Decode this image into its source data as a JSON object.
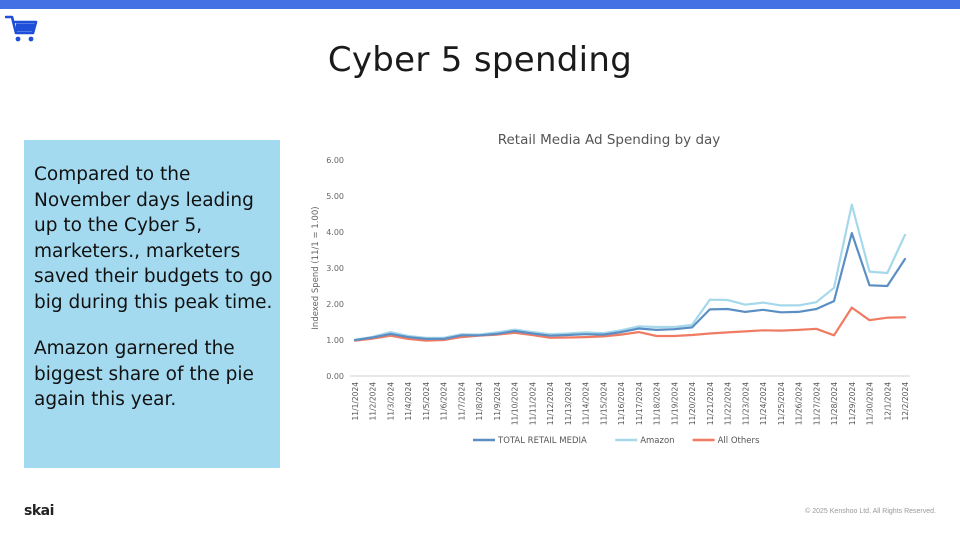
{
  "slide": {
    "title": "Cyber 5 spending",
    "paragraphs": [
      "Compared to the November days leading up to the Cyber 5, marketers., marketers saved their budgets to go big during this peak time.",
      "Amazon garnered the biggest share of the pie again this year."
    ],
    "logo": "skai",
    "copyright": "© 2025 Kenshoo Ltd. All Rights Reserved.",
    "icon": "shopping-cart-icon",
    "colors": {
      "accent": "#4472e4",
      "textbox": "#a4daf0"
    }
  },
  "chart_data": {
    "type": "line",
    "title": "Retail Media Ad Spending by day",
    "xlabel": "",
    "ylabel": "Indexed Spend (11/1 = 1.00)",
    "ylim": [
      0,
      6
    ],
    "yticks": [
      "0.00",
      "1.00",
      "2.00",
      "3.00",
      "4.00",
      "5.00",
      "6.00"
    ],
    "grid": false,
    "legend": "bottom",
    "categories": [
      "11/1/2024",
      "11/2/2024",
      "11/3/2024",
      "11/4/2024",
      "11/5/2024",
      "11/6/2024",
      "11/7/2024",
      "11/8/2024",
      "11/9/2024",
      "11/10/2024",
      "11/11/2024",
      "11/12/2024",
      "11/13/2024",
      "11/14/2024",
      "11/15/2024",
      "11/16/2024",
      "11/17/2024",
      "11/18/2024",
      "11/19/2024",
      "11/20/2024",
      "11/21/2024",
      "11/22/2024",
      "11/23/2024",
      "11/24/2024",
      "11/25/2024",
      "11/26/2024",
      "11/27/2024",
      "11/28/2024",
      "11/29/2024",
      "11/30/2024",
      "12/1/2024",
      "12/2/2024"
    ],
    "series": [
      {
        "name": "TOTAL RETAIL MEDIA",
        "color": "#5b8fc4",
        "values": [
          1.0,
          1.07,
          1.17,
          1.08,
          1.03,
          1.03,
          1.13,
          1.13,
          1.17,
          1.25,
          1.18,
          1.12,
          1.14,
          1.16,
          1.15,
          1.22,
          1.32,
          1.28,
          1.3,
          1.35,
          1.85,
          1.86,
          1.78,
          1.84,
          1.77,
          1.78,
          1.86,
          2.08,
          3.97,
          2.52,
          2.5,
          3.25
        ]
      },
      {
        "name": "Amazon",
        "color": "#a6d8ec",
        "values": [
          1.0,
          1.09,
          1.22,
          1.11,
          1.06,
          1.06,
          1.16,
          1.15,
          1.21,
          1.29,
          1.22,
          1.16,
          1.18,
          1.21,
          1.19,
          1.27,
          1.38,
          1.36,
          1.36,
          1.42,
          2.12,
          2.11,
          1.98,
          2.04,
          1.96,
          1.96,
          2.05,
          2.45,
          4.76,
          2.9,
          2.86,
          3.92
        ]
      },
      {
        "name": "All Others",
        "color": "#f07b63",
        "values": [
          0.98,
          1.04,
          1.12,
          1.03,
          0.98,
          1.0,
          1.08,
          1.12,
          1.15,
          1.2,
          1.14,
          1.06,
          1.07,
          1.08,
          1.1,
          1.15,
          1.22,
          1.11,
          1.11,
          1.14,
          1.18,
          1.21,
          1.24,
          1.27,
          1.26,
          1.28,
          1.31,
          1.13,
          1.9,
          1.55,
          1.62,
          1.63
        ]
      }
    ]
  }
}
